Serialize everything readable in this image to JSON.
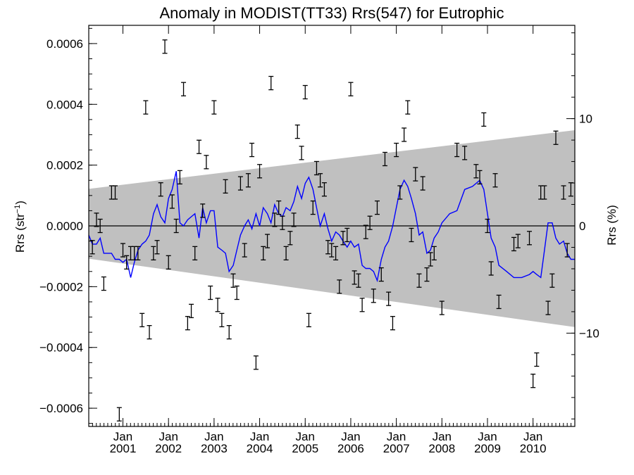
{
  "chart_data": {
    "type": "scatter",
    "title": "Anomaly in MODIST(TT33) Rrs(547) for Eutrophic",
    "ylabel_left": {
      "base": "Rrs (str",
      "sup": "−1",
      "close": ")"
    },
    "ylabel_right": "Rrs (%)",
    "xlim": [
      2000.25,
      2010.917
    ],
    "ylim": [
      -0.00066,
      0.00066
    ],
    "ylim_right_pct": [
      -18.7,
      18.7
    ],
    "y_ticks": [
      {
        "v": 0.0006,
        "label": "0.0006"
      },
      {
        "v": 0.0004,
        "label": "0.0004"
      },
      {
        "v": 0.0002,
        "label": "0.0002"
      },
      {
        "v": 0.0,
        "label": "0.0000"
      },
      {
        "v": -0.0002,
        "label": "−0.0002"
      },
      {
        "v": -0.0004,
        "label": "−0.0004"
      },
      {
        "v": -0.0006,
        "label": "−0.0006"
      }
    ],
    "y_right_ticks": [
      {
        "v": 10,
        "label": "10"
      },
      {
        "v": 0,
        "label": "0"
      },
      {
        "v": -10,
        "label": "−10"
      }
    ],
    "x_ticks": [
      {
        "v": 2001.0,
        "month": "Jan",
        "year": "2001"
      },
      {
        "v": 2002.0,
        "month": "Jan",
        "year": "2002"
      },
      {
        "v": 2003.0,
        "month": "Jan",
        "year": "2003"
      },
      {
        "v": 2004.0,
        "month": "Jan",
        "year": "2004"
      },
      {
        "v": 2005.0,
        "month": "Jan",
        "year": "2005"
      },
      {
        "v": 2006.0,
        "month": "Jan",
        "year": "2006"
      },
      {
        "v": 2007.0,
        "month": "Jan",
        "year": "2007"
      },
      {
        "v": 2008.0,
        "month": "Jan",
        "year": "2008"
      },
      {
        "v": 2009.0,
        "month": "Jan",
        "year": "2009"
      },
      {
        "v": 2010.0,
        "month": "Jan",
        "year": "2010"
      }
    ],
    "band": {
      "x": [
        2000.25,
        2010.917
      ],
      "upper": [
        0.000122,
        0.000315
      ],
      "lower": [
        -0.000108,
        -0.000333
      ]
    },
    "reference_line": 0,
    "colors": {
      "band": "#c0c0c0",
      "line": "#0000ff",
      "points": "#000000"
    },
    "series": [
      {
        "type": "line",
        "x": [
          2000.25,
          2000.33,
          2000.42,
          2000.5,
          2000.58,
          2000.67,
          2000.75,
          2000.83,
          2000.92,
          2001.0,
          2001.08,
          2001.17,
          2001.25,
          2001.33,
          2001.42,
          2001.5,
          2001.58,
          2001.67,
          2001.75,
          2001.83,
          2001.92,
          2002.0,
          2002.08,
          2002.17,
          2002.25,
          2002.33,
          2002.42,
          2002.5,
          2002.58,
          2002.67,
          2002.75,
          2002.83,
          2002.92,
          2003.0,
          2003.08,
          2003.17,
          2003.25,
          2003.33,
          2003.42,
          2003.5,
          2003.58,
          2003.67,
          2003.75,
          2003.83,
          2003.92,
          2004.0,
          2004.08,
          2004.17,
          2004.25,
          2004.33,
          2004.42,
          2004.5,
          2004.58,
          2004.67,
          2004.75,
          2004.83,
          2004.92,
          2005.0,
          2005.08,
          2005.17,
          2005.25,
          2005.33,
          2005.42,
          2005.5,
          2005.58,
          2005.67,
          2005.75,
          2005.83,
          2005.92,
          2006.0,
          2006.08,
          2006.17,
          2006.25,
          2006.33,
          2006.42,
          2006.5,
          2006.58,
          2006.67,
          2006.75,
          2006.83,
          2006.92,
          2007.0,
          2007.08,
          2007.17,
          2007.25,
          2007.33,
          2007.42,
          2007.5,
          2007.58,
          2007.67,
          2007.75,
          2007.83,
          2007.92,
          2008.0,
          2008.17,
          2008.33,
          2008.5,
          2008.67,
          2008.83,
          2008.92,
          2009.0,
          2009.08,
          2009.17,
          2009.25,
          2009.42,
          2009.58,
          2009.75,
          2009.92,
          2010.0,
          2010.08,
          2010.17,
          2010.25,
          2010.33,
          2010.42,
          2010.5,
          2010.58,
          2010.67,
          2010.75,
          2010.83,
          2010.917
        ],
        "y": [
          -3e-05,
          -6e-05,
          -6e-05,
          -4e-05,
          -9e-05,
          -9e-05,
          -9e-05,
          -0.00011,
          -0.00011,
          -0.00012,
          -0.00011,
          -0.00017,
          -0.00012,
          -8e-05,
          -6e-05,
          -5e-05,
          -3e-05,
          4e-05,
          7e-05,
          3e-05,
          1e-05,
          9e-05,
          0.00012,
          0.00018,
          1e-05,
          0.0,
          2e-05,
          3e-05,
          4e-05,
          -4e-05,
          6e-05,
          1e-05,
          5e-05,
          5e-05,
          -7e-05,
          -8e-05,
          -9e-05,
          -0.00015,
          -0.00013,
          -8e-05,
          -3e-05,
          0.0,
          2e-05,
          -1e-05,
          4e-05,
          0.0,
          6e-05,
          4e-05,
          1e-05,
          7e-05,
          4e-05,
          3e-05,
          6e-05,
          5e-05,
          8e-05,
          0.00013,
          9e-05,
          0.00014,
          0.00016,
          0.00012,
          6e-05,
          0.0,
          4e-05,
          -1e-05,
          -5e-05,
          -2e-05,
          -3e-05,
          -5e-05,
          -7e-05,
          -5e-05,
          -7e-05,
          -6e-05,
          -0.00013,
          -0.00014,
          -0.00014,
          -0.00015,
          -0.00018,
          -0.00011,
          -7e-05,
          -5e-05,
          0.0,
          6e-05,
          0.00012,
          0.00015,
          0.00013,
          9e-05,
          4e-05,
          -3e-05,
          -2e-05,
          -9e-05,
          -8e-05,
          -4e-05,
          -2e-05,
          1e-05,
          4e-05,
          5e-05,
          0.00012,
          0.00013,
          0.00015,
          0.00012,
          4e-05,
          -4e-05,
          -7e-05,
          -0.00013,
          -0.00015,
          -0.00017,
          -0.00017,
          -0.00016,
          -0.00015,
          -0.00016,
          -0.00017,
          -8e-05,
          1e-05,
          1e-05,
          -4e-05,
          -6e-05,
          -5e-05,
          -9e-05,
          -0.00011,
          -0.00011
        ]
      },
      {
        "type": "errorbar",
        "err": 2.2e-05,
        "x": [
          2000.33,
          2000.42,
          2000.5,
          2000.58,
          2000.75,
          2000.83,
          2000.92,
          2001.0,
          2001.08,
          2001.17,
          2001.25,
          2001.33,
          2001.42,
          2001.5,
          2001.58,
          2001.67,
          2001.75,
          2001.83,
          2001.92,
          2002.0,
          2002.08,
          2002.17,
          2002.25,
          2002.33,
          2002.42,
          2002.5,
          2002.58,
          2002.67,
          2002.75,
          2002.83,
          2002.92,
          2003.0,
          2003.08,
          2003.17,
          2003.25,
          2003.33,
          2003.42,
          2003.5,
          2003.58,
          2003.67,
          2003.75,
          2003.83,
          2003.92,
          2004.0,
          2004.08,
          2004.17,
          2004.25,
          2004.33,
          2004.42,
          2004.5,
          2004.58,
          2004.67,
          2004.75,
          2004.83,
          2004.92,
          2005.0,
          2005.08,
          2005.17,
          2005.25,
          2005.33,
          2005.42,
          2005.5,
          2005.58,
          2005.67,
          2005.75,
          2005.83,
          2005.92,
          2006.0,
          2006.08,
          2006.17,
          2006.25,
          2006.33,
          2006.42,
          2006.5,
          2006.58,
          2006.67,
          2006.75,
          2006.83,
          2006.92,
          2007.0,
          2007.08,
          2007.17,
          2007.25,
          2007.33,
          2007.42,
          2007.5,
          2007.58,
          2007.67,
          2007.75,
          2007.83,
          2008.0,
          2008.33,
          2008.5,
          2008.75,
          2008.83,
          2008.92,
          2009.0,
          2009.08,
          2009.17,
          2009.25,
          2009.58,
          2009.67,
          2009.92,
          2010.0,
          2010.08,
          2010.17,
          2010.25,
          2010.33,
          2010.42,
          2010.5,
          2010.67,
          2010.75,
          2010.83
        ],
        "y": [
          -7e-05,
          2e-05,
          0.0,
          -0.00019,
          0.00011,
          0.00011,
          -0.00062,
          -8e-05,
          -0.00012,
          -9e-05,
          -9e-05,
          -9e-05,
          -0.00031,
          0.00039,
          -0.00035,
          -9e-05,
          -7e-05,
          0.00012,
          0.00059,
          -0.00012,
          8e-05,
          0.0,
          0.00016,
          0.00045,
          -0.00032,
          -0.00028,
          -9e-05,
          0.00026,
          5e-05,
          0.00021,
          -0.00022,
          0.00039,
          -0.00026,
          -0.00031,
          0.00013,
          -0.00035,
          -0.00018,
          -0.00022,
          0.00014,
          -8e-05,
          0.00015,
          0.00025,
          -0.00045,
          0.00018,
          -9e-05,
          -5e-05,
          0.00047,
          2e-05,
          6e-05,
          1e-05,
          -9e-05,
          -4e-05,
          2e-05,
          0.00031,
          0.00024,
          0.00044,
          -0.00031,
          6e-05,
          0.00019,
          0.00015,
          0.00012,
          -7e-05,
          -8e-05,
          -9e-05,
          -0.0002,
          -4e-05,
          -3e-05,
          0.00045,
          -0.00017,
          -0.00018,
          -0.00026,
          -2e-05,
          1e-05,
          -0.00023,
          6e-05,
          -0.00016,
          0.00022,
          -0.00024,
          -0.00032,
          0.00025,
          0.00011,
          0.0003,
          0.00039,
          -3e-05,
          0.00017,
          -0.00018,
          0.00014,
          -0.00016,
          -0.00011,
          -9e-05,
          -0.00027,
          0.00025,
          0.00024,
          0.00018,
          0.00016,
          0.00035,
          0.0,
          -0.00014,
          0.00015,
          -0.00025,
          -6e-05,
          -5e-05,
          -4e-05,
          -0.00051,
          -0.00044,
          0.00011,
          0.00011,
          -0.00027,
          -0.00018,
          0.00029,
          0.00011,
          -8e-05,
          0.00012
        ]
      }
    ]
  }
}
